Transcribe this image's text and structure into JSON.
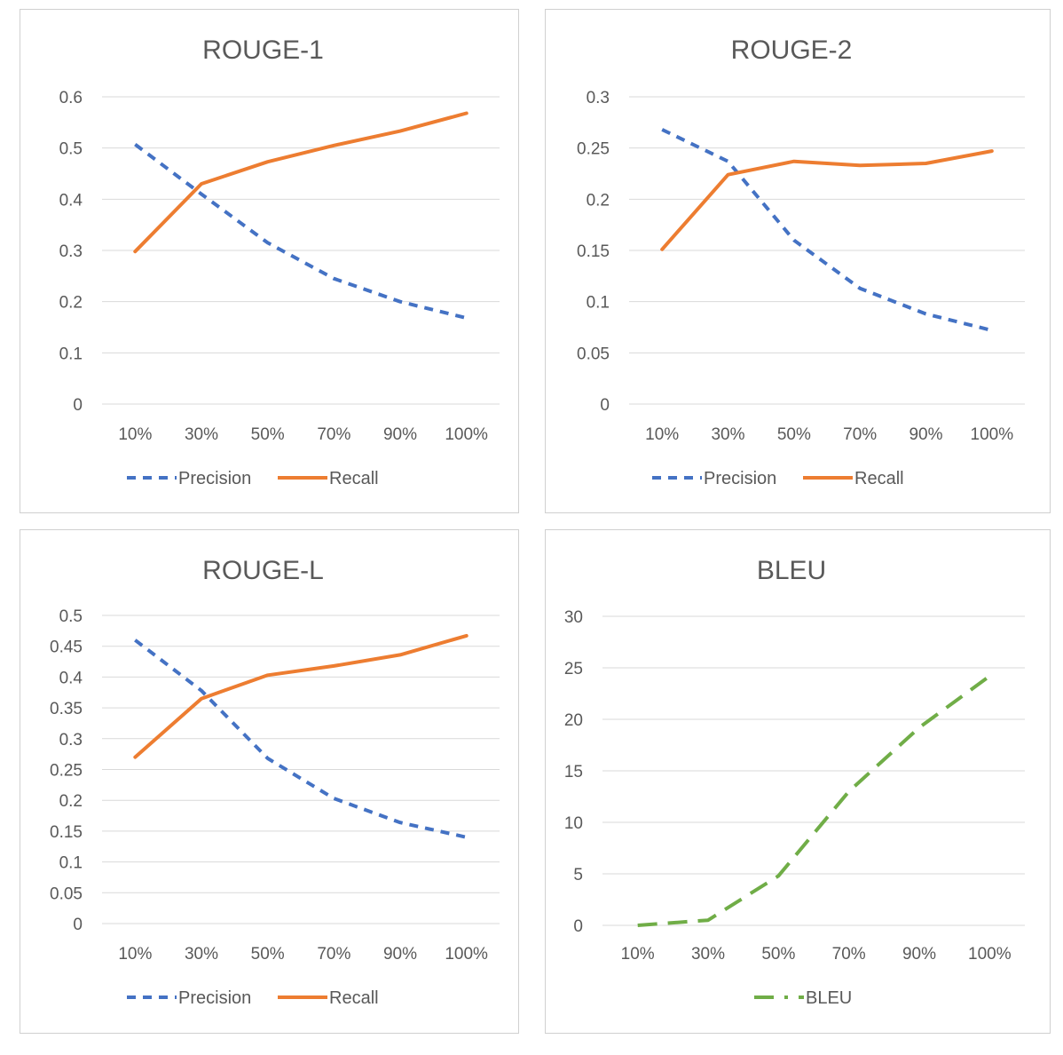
{
  "chart_data": [
    {
      "type": "line",
      "title": "ROUGE-1",
      "categories": [
        "10%",
        "30%",
        "50%",
        "70%",
        "90%",
        "100%"
      ],
      "yticks": [
        "0",
        "0.1",
        "0.2",
        "0.3",
        "0.4",
        "0.5",
        "0.6"
      ],
      "ylim": [
        0,
        0.6
      ],
      "series": [
        {
          "name": "Precision",
          "values": [
            0.507,
            0.41,
            0.315,
            0.245,
            0.2,
            0.168
          ],
          "color": "#4472C4",
          "style": "dash"
        },
        {
          "name": "Recall",
          "values": [
            0.298,
            0.43,
            0.473,
            0.505,
            0.533,
            0.568
          ],
          "color": "#ED7D31",
          "style": "solid"
        }
      ],
      "legend": "bottom"
    },
    {
      "type": "line",
      "title": "ROUGE-2",
      "categories": [
        "10%",
        "30%",
        "50%",
        "70%",
        "90%",
        "100%"
      ],
      "yticks": [
        "0",
        "0.05",
        "0.1",
        "0.15",
        "0.2",
        "0.25",
        "0.3"
      ],
      "ylim": [
        0,
        0.3
      ],
      "series": [
        {
          "name": "Precision",
          "values": [
            0.268,
            0.237,
            0.16,
            0.113,
            0.088,
            0.072
          ],
          "color": "#4472C4",
          "style": "dash"
        },
        {
          "name": "Recall",
          "values": [
            0.151,
            0.224,
            0.237,
            0.233,
            0.235,
            0.247
          ],
          "color": "#ED7D31",
          "style": "solid"
        }
      ],
      "legend": "bottom"
    },
    {
      "type": "line",
      "title": "ROUGE-L",
      "categories": [
        "10%",
        "30%",
        "50%",
        "70%",
        "90%",
        "100%"
      ],
      "yticks": [
        "0",
        "0.05",
        "0.1",
        "0.15",
        "0.2",
        "0.25",
        "0.3",
        "0.35",
        "0.4",
        "0.45",
        "0.5"
      ],
      "ylim": [
        0,
        0.5
      ],
      "series": [
        {
          "name": "Precision",
          "values": [
            0.46,
            0.378,
            0.268,
            0.203,
            0.164,
            0.14
          ],
          "color": "#4472C4",
          "style": "dash"
        },
        {
          "name": "Recall",
          "values": [
            0.27,
            0.365,
            0.403,
            0.418,
            0.436,
            0.467
          ],
          "color": "#ED7D31",
          "style": "solid"
        }
      ],
      "legend": "bottom"
    },
    {
      "type": "line",
      "title": "BLEU",
      "categories": [
        "10%",
        "30%",
        "50%",
        "70%",
        "90%",
        "100%"
      ],
      "yticks": [
        "0",
        "5",
        "10",
        "15",
        "20",
        "25",
        "30"
      ],
      "ylim": [
        0,
        30
      ],
      "series": [
        {
          "name": "BLEU",
          "values": [
            0.0,
            0.5,
            4.8,
            13.0,
            19.2,
            24.2
          ],
          "color": "#70AD47",
          "style": "longdash"
        }
      ],
      "legend": "bottom"
    }
  ]
}
